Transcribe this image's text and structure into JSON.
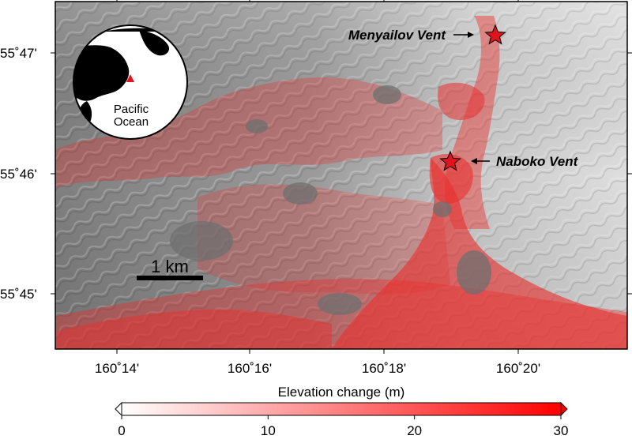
{
  "map": {
    "y_ticks": [
      "55˚47'",
      "55˚46'",
      "55˚45'"
    ],
    "x_ticks": [
      "160˚14'",
      "160˚16'",
      "160˚18'",
      "160˚20'"
    ],
    "vents": [
      {
        "name": "Menyailov Vent"
      },
      {
        "name": "Naboko Vent"
      }
    ],
    "scale_bar_label": "1 km",
    "inset_label_line1": "Pacific",
    "inset_label_line2": "Ocean"
  },
  "colorbar": {
    "title": "Elevation change (m)",
    "min": 0,
    "max": 30,
    "tick_labels": [
      "0",
      "10",
      "20",
      "30"
    ],
    "color_low": "#ffffff",
    "color_high": "#ff0000"
  },
  "colors": {
    "deposit": "#e8302f",
    "vent_star": "#e0141c",
    "inset_marker": "#e0141c"
  }
}
